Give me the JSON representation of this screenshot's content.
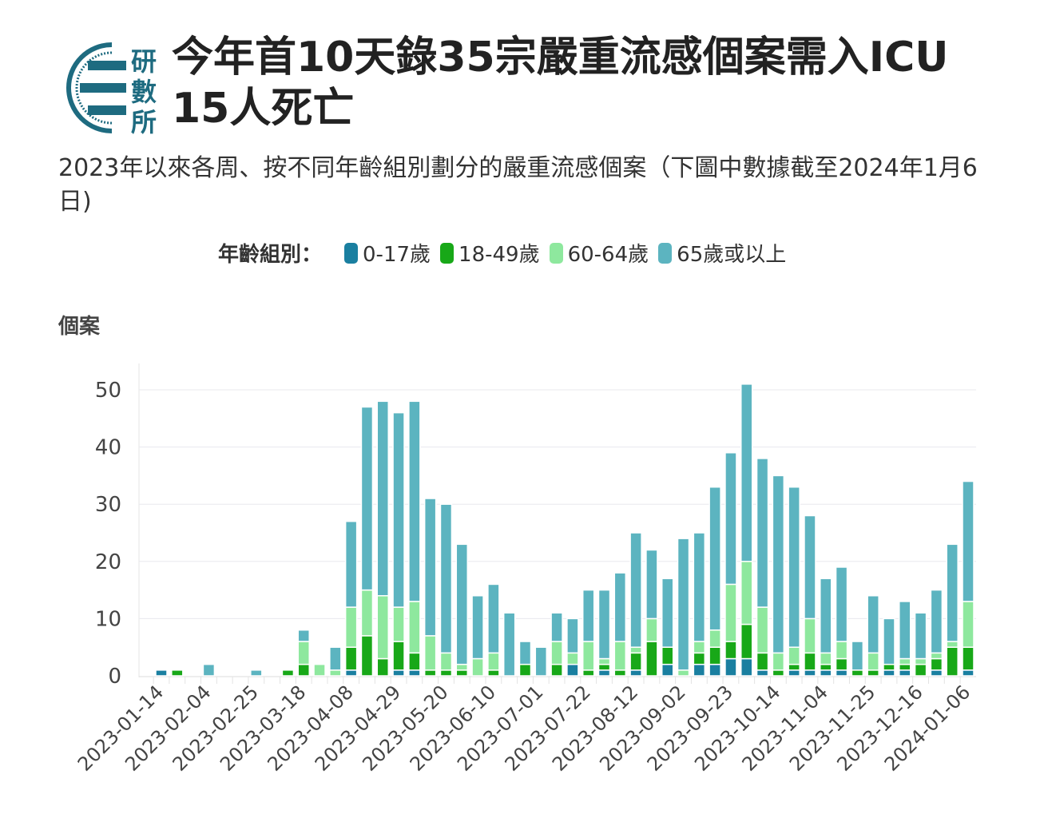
{
  "header": {
    "title": "今年首10天錄35宗嚴重流感個案需入ICU 15人死亡",
    "subtitle": "2023年以來各周、按不同年齡組別劃分的嚴重流感個案（下圖中數據截至2024年1月6日)",
    "logo_text": "研數所"
  },
  "chart_data": {
    "type": "bar",
    "stacked": true,
    "title": "",
    "ylabel": "個案",
    "xlabel": "",
    "ylim": [
      0,
      50
    ],
    "yticks": [
      0,
      10,
      20,
      30,
      40,
      50
    ],
    "grid": true,
    "legend": {
      "title": "年齡組別：",
      "placement": "top"
    },
    "tick_labels": [
      "2023-01-14",
      "2023-02-04",
      "2023-02-25",
      "2023-03-18",
      "2023-04-08",
      "2023-04-29",
      "2023-05-20",
      "2023-06-10",
      "2023-07-01",
      "2023-07-22",
      "2023-08-12",
      "2023-09-02",
      "2023-09-23",
      "2023-10-14",
      "2023-11-04",
      "2023-11-25",
      "2023-12-16",
      "2024-01-06"
    ],
    "categories": [
      "2023-01-14",
      "2023-01-21",
      "2023-01-28",
      "2023-02-04",
      "2023-02-11",
      "2023-02-18",
      "2023-02-25",
      "2023-03-04",
      "2023-03-11",
      "2023-03-18",
      "2023-03-25",
      "2023-04-01",
      "2023-04-08",
      "2023-04-15",
      "2023-04-22",
      "2023-04-29",
      "2023-05-06",
      "2023-05-13",
      "2023-05-20",
      "2023-05-27",
      "2023-06-03",
      "2023-06-10",
      "2023-06-17",
      "2023-06-24",
      "2023-07-01",
      "2023-07-08",
      "2023-07-15",
      "2023-07-22",
      "2023-07-29",
      "2023-08-05",
      "2023-08-12",
      "2023-08-19",
      "2023-08-26",
      "2023-09-02",
      "2023-09-09",
      "2023-09-16",
      "2023-09-23",
      "2023-09-30",
      "2023-10-07",
      "2023-10-14",
      "2023-10-21",
      "2023-10-28",
      "2023-11-04",
      "2023-11-11",
      "2023-11-18",
      "2023-11-25",
      "2023-12-02",
      "2023-12-09",
      "2023-12-16",
      "2023-12-23",
      "2023-12-30",
      "2024-01-06"
    ],
    "series": [
      {
        "name": "0-17歲",
        "color": "#1a7fa0",
        "values": [
          1,
          0,
          0,
          0,
          0,
          0,
          0,
          0,
          0,
          0,
          0,
          0,
          1,
          0,
          0,
          1,
          1,
          0,
          0,
          0,
          0,
          0,
          0,
          0,
          0,
          0,
          2,
          0,
          1,
          0,
          1,
          0,
          2,
          0,
          2,
          2,
          3,
          3,
          1,
          0,
          1,
          1,
          1,
          1,
          0,
          0,
          1,
          1,
          0,
          1,
          0,
          1
        ]
      },
      {
        "name": "18-49歲",
        "color": "#18a818",
        "values": [
          0,
          1,
          0,
          0,
          0,
          0,
          0,
          0,
          1,
          2,
          0,
          0,
          4,
          7,
          3,
          5,
          3,
          1,
          1,
          1,
          0,
          1,
          0,
          2,
          0,
          2,
          0,
          1,
          1,
          1,
          3,
          6,
          3,
          0,
          2,
          3,
          3,
          6,
          3,
          1,
          1,
          3,
          1,
          2,
          1,
          1,
          1,
          1,
          2,
          2,
          5,
          4
        ]
      },
      {
        "name": "60-64歲",
        "color": "#8ee89e",
        "values": [
          0,
          0,
          0,
          0,
          0,
          0,
          0,
          0,
          0,
          4,
          2,
          1,
          7,
          8,
          11,
          6,
          9,
          6,
          3,
          1,
          3,
          3,
          0,
          0,
          0,
          4,
          2,
          5,
          1,
          5,
          1,
          4,
          0,
          1,
          2,
          3,
          10,
          11,
          8,
          3,
          3,
          6,
          2,
          3,
          0,
          3,
          0,
          1,
          1,
          1,
          1,
          8
        ]
      },
      {
        "name": "65歲或以上",
        "color": "#5cb4c0",
        "values": [
          0,
          0,
          0,
          2,
          0,
          0,
          1,
          0,
          0,
          2,
          0,
          4,
          15,
          32,
          34,
          34,
          35,
          24,
          26,
          21,
          11,
          12,
          11,
          4,
          5,
          5,
          6,
          9,
          12,
          12,
          20,
          12,
          12,
          23,
          19,
          25,
          23,
          31,
          26,
          31,
          28,
          18,
          13,
          13,
          5,
          10,
          8,
          10,
          8,
          11,
          17,
          21
        ]
      }
    ]
  }
}
